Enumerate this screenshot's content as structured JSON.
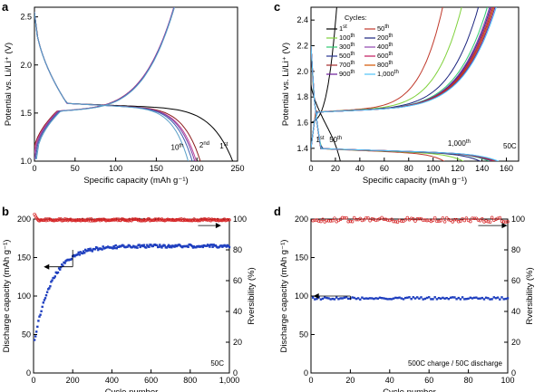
{
  "chart_data": [
    {
      "panel": "a",
      "type": "line",
      "xlabel": "Specific capacity (mAh g⁻¹)",
      "ylabel": "Potential vs. Li/Li⁺ (V)",
      "xlim": [
        0,
        250
      ],
      "ylim": [
        1.0,
        2.6
      ],
      "xticks": [
        0,
        50,
        100,
        150,
        200,
        250
      ],
      "yticks": [
        1.0,
        1.5,
        2.0,
        2.5
      ],
      "annotations": [
        "10th",
        "2nd",
        "1st"
      ],
      "series": [
        {
          "label_ref": "1st",
          "color": "#000000",
          "discharge_end": 245,
          "charge_end": null
        },
        {
          "label_ref": "2nd",
          "color": "#8b1a1a",
          "discharge_end": 205,
          "charge_end": 182
        },
        {
          "label_ref": "",
          "color": "#c0449a",
          "discharge_end": 200,
          "charge_end": 180
        },
        {
          "label_ref": "",
          "color": "#7a3fa0",
          "discharge_end": 198,
          "charge_end": 179
        },
        {
          "label_ref": "",
          "color": "#3f5fb0",
          "discharge_end": 195,
          "charge_end": 178
        },
        {
          "label_ref": "10th",
          "color": "#5aa0c8",
          "discharge_end": 190,
          "charge_end": 177
        }
      ]
    },
    {
      "panel": "c",
      "type": "line",
      "xlabel": "Specific capacity (mAh g⁻¹)",
      "ylabel": "Potential vs. Li/Li⁺ (V)",
      "xlim": [
        0,
        170
      ],
      "ylim": [
        1.3,
        2.5
      ],
      "xticks": [
        0,
        20,
        40,
        60,
        80,
        100,
        120,
        140,
        160
      ],
      "yticks": [
        1.4,
        1.6,
        1.8,
        2.0,
        2.2,
        2.4
      ],
      "legend_title": "Cycles:",
      "legend": [
        "1st",
        "50th",
        "100th",
        "200th",
        "300th",
        "400th",
        "500th",
        "600th",
        "700th",
        "800th",
        "900th",
        "1,000th"
      ],
      "annotations": [
        "1st",
        "50th",
        "1,000th",
        "50C"
      ],
      "series": [
        {
          "name": "1st",
          "color": "#000000",
          "capacity": 24
        },
        {
          "name": "50th",
          "color": "#c0392b",
          "capacity": 118
        },
        {
          "name": "100th",
          "color": "#7fd13b",
          "capacity": 135
        },
        {
          "name": "200th",
          "color": "#1a237e",
          "capacity": 150
        },
        {
          "name": "300th",
          "color": "#2ecc71",
          "capacity": 158
        },
        {
          "name": "400th",
          "color": "#8e44ad",
          "capacity": 160
        },
        {
          "name": "500th",
          "color": "#283593",
          "capacity": 161
        },
        {
          "name": "600th",
          "color": "#c2185b",
          "capacity": 162
        },
        {
          "name": "700th",
          "color": "#a52a2a",
          "capacity": 163
        },
        {
          "name": "800th",
          "color": "#d35400",
          "capacity": 164
        },
        {
          "name": "900th",
          "color": "#6a1b9a",
          "capacity": 165
        },
        {
          "name": "1,000th",
          "color": "#4fc3f7",
          "capacity": 166
        }
      ]
    },
    {
      "panel": "b",
      "type": "scatter",
      "xlabel": "Cycle number",
      "ylabel": "Discharge capacity (mAh g⁻¹)",
      "ylabel_right": "Rversibility (%)",
      "xlim": [
        0,
        1000
      ],
      "ylim": [
        0,
        200
      ],
      "ylim_right": [
        0,
        100
      ],
      "xticks": [
        "0",
        "200",
        "400",
        "600",
        "800",
        "1,000"
      ],
      "yticks": [
        0,
        50,
        100,
        150,
        200
      ],
      "yticks_right": [
        0,
        20,
        40,
        60,
        80,
        100
      ],
      "annotation": "50C",
      "series": [
        {
          "axis": "right",
          "color": "#d62728",
          "marker": "circle",
          "level": 99.5,
          "first_value": 105
        },
        {
          "axis": "left",
          "color": "#1f3fbf",
          "marker": "square",
          "start": 35,
          "plateau": 165
        }
      ]
    },
    {
      "panel": "d",
      "type": "scatter",
      "xlabel": "Cycle number",
      "ylabel": "Discharge capacity (mAh g⁻¹)",
      "ylabel_right": "Rversibility (%)",
      "xlim": [
        0,
        100
      ],
      "ylim": [
        0,
        200
      ],
      "ylim_right": [
        0,
        100
      ],
      "xticks": [
        "0",
        "20",
        "40",
        "60",
        "80",
        "100"
      ],
      "yticks": [
        0,
        50,
        100,
        150,
        200
      ],
      "yticks_right": [
        0,
        20,
        40,
        60,
        80,
        100
      ],
      "annotation": "500C charge / 50C discharge",
      "series": [
        {
          "axis": "right",
          "color": "#d62728",
          "marker": "circle",
          "level": 99.5
        },
        {
          "axis": "left",
          "color": "#1f3fbf",
          "marker": "square",
          "level": 97
        }
      ]
    }
  ]
}
